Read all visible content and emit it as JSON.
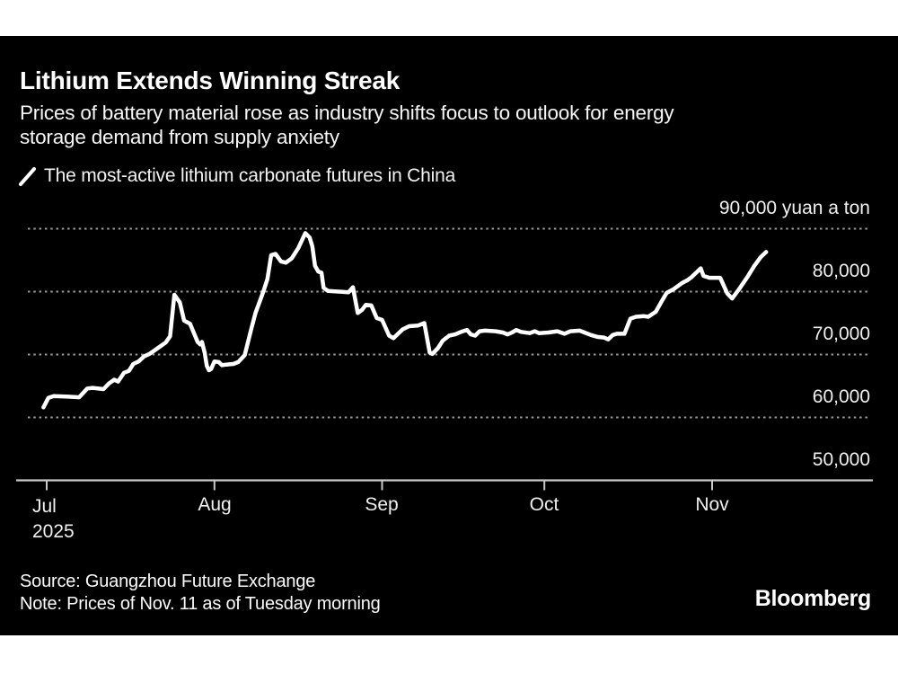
{
  "header": {
    "title": "Lithium Extends Winning Streak",
    "subtitle_line1": "Prices of battery material rose as industry shifts focus to outlook for energy",
    "subtitle_line2": "storage demand from supply anxiety",
    "legend_label": "The most-active lithium carbonate futures in China"
  },
  "footer": {
    "source": "Source: Guangzhou Future Exchange",
    "note": "Note: Prices of Nov. 11 as of Tuesday morning",
    "brand": "Bloomberg"
  },
  "colors": {
    "page_background": "#ffffff",
    "card_background": "#000000",
    "line": "#ffffff",
    "grid": "#9b9b9b",
    "axis": "#c8c8c8",
    "text": "#ffffff"
  },
  "chart_data": {
    "type": "line",
    "title": "Lithium Extends Winning Streak",
    "series_name": "The most-active lithium carbonate futures in China",
    "unit": "yuan a ton",
    "ylim": [
      50000,
      92000
    ],
    "y_ticks": [
      90000,
      80000,
      70000,
      60000,
      50000
    ],
    "y_tick_labels": [
      "90,000 yuan a ton",
      "80,000",
      "70,000",
      "60,000",
      "50,000"
    ],
    "x_tick_labels": [
      "Jul",
      "Aug",
      "Sep",
      "Oct",
      "Nov"
    ],
    "x_year_label": "2025",
    "x_unit": "days since Jul 1, 2025",
    "x_tick_days": [
      0,
      31,
      62,
      92,
      123
    ],
    "grid": true,
    "legend_position": "top-left",
    "points": [
      [
        -0.6,
        61600
      ],
      [
        0.3,
        63100
      ],
      [
        1.3,
        63400
      ],
      [
        4,
        63300
      ],
      [
        6,
        63200
      ],
      [
        7.5,
        64600
      ],
      [
        8.5,
        64700
      ],
      [
        10.5,
        64500
      ],
      [
        11.5,
        65400
      ],
      [
        12.5,
        66000
      ],
      [
        13.2,
        65700
      ],
      [
        14.3,
        67100
      ],
      [
        15.2,
        67400
      ],
      [
        16,
        68500
      ],
      [
        17,
        68900
      ],
      [
        18,
        69700
      ],
      [
        19,
        70100
      ],
      [
        20,
        70700
      ],
      [
        21,
        71300
      ],
      [
        22,
        71900
      ],
      [
        22.8,
        72900
      ],
      [
        23.6,
        79500
      ],
      [
        24.6,
        78300
      ],
      [
        25.4,
        75400
      ],
      [
        26.5,
        74900
      ],
      [
        27.9,
        72000
      ],
      [
        28.4,
        71600
      ],
      [
        28.7,
        72000
      ],
      [
        29.2,
        70300
      ],
      [
        29.6,
        68200
      ],
      [
        30,
        67500
      ],
      [
        30.4,
        67700
      ],
      [
        31,
        68900
      ],
      [
        31.8,
        68800
      ],
      [
        32.4,
        68300
      ],
      [
        33.2,
        68400
      ],
      [
        34.5,
        68500
      ],
      [
        35.4,
        68800
      ],
      [
        36.6,
        69900
      ],
      [
        37.8,
        74000
      ],
      [
        38.6,
        76600
      ],
      [
        40,
        79900
      ],
      [
        40.8,
        82000
      ],
      [
        41.5,
        85800
      ],
      [
        42.3,
        86000
      ],
      [
        43.3,
        84800
      ],
      [
        44.2,
        84600
      ],
      [
        45.3,
        85300
      ],
      [
        46.5,
        86900
      ],
      [
        47.8,
        89300
      ],
      [
        48.6,
        88600
      ],
      [
        49.1,
        87200
      ],
      [
        49.6,
        84100
      ],
      [
        50.2,
        83200
      ],
      [
        50.8,
        83000
      ],
      [
        51.2,
        80600
      ],
      [
        52,
        80100
      ],
      [
        54,
        80000
      ],
      [
        55.8,
        79900
      ],
      [
        56.6,
        80700
      ],
      [
        57.5,
        76600
      ],
      [
        58.3,
        77100
      ],
      [
        59,
        77900
      ],
      [
        60,
        77800
      ],
      [
        61,
        75800
      ],
      [
        62,
        75500
      ],
      [
        63.3,
        73000
      ],
      [
        64.1,
        72600
      ],
      [
        65.8,
        74000
      ],
      [
        67,
        74500
      ],
      [
        68.6,
        74600
      ],
      [
        69.8,
        75000
      ],
      [
        70.8,
        70300
      ],
      [
        71.3,
        70100
      ],
      [
        72.3,
        71000
      ],
      [
        73.2,
        72200
      ],
      [
        74.4,
        73000
      ],
      [
        75.5,
        73200
      ],
      [
        76.9,
        73700
      ],
      [
        77.7,
        73900
      ],
      [
        78.4,
        73200
      ],
      [
        79.2,
        73000
      ],
      [
        80,
        73700
      ],
      [
        81,
        73800
      ],
      [
        83,
        73700
      ],
      [
        84.3,
        73500
      ],
      [
        85.2,
        73200
      ],
      [
        86,
        73500
      ],
      [
        86.8,
        73900
      ],
      [
        87.7,
        73600
      ],
      [
        89.3,
        73400
      ],
      [
        90.2,
        73700
      ],
      [
        91,
        73400
      ],
      [
        92.7,
        73500
      ],
      [
        94.4,
        73700
      ],
      [
        95.7,
        73300
      ],
      [
        96.8,
        73700
      ],
      [
        98.5,
        73800
      ],
      [
        100.6,
        73100
      ],
      [
        101.8,
        72800
      ],
      [
        103,
        72700
      ],
      [
        103.8,
        72400
      ],
      [
        104.6,
        73100
      ],
      [
        105.4,
        73300
      ],
      [
        106.8,
        73300
      ],
      [
        107.9,
        75700
      ],
      [
        108.9,
        76000
      ],
      [
        110.4,
        76100
      ],
      [
        111.2,
        76000
      ],
      [
        112.6,
        76800
      ],
      [
        113.7,
        78500
      ],
      [
        114.6,
        79800
      ],
      [
        115.9,
        80400
      ],
      [
        117.5,
        81400
      ],
      [
        118.4,
        81800
      ],
      [
        119.2,
        82300
      ],
      [
        120.9,
        83700
      ],
      [
        121.4,
        82500
      ],
      [
        122.5,
        82200
      ],
      [
        124.5,
        82200
      ],
      [
        125.8,
        79700
      ],
      [
        126.7,
        78900
      ],
      [
        128,
        80400
      ],
      [
        129.5,
        82300
      ],
      [
        130.8,
        84100
      ],
      [
        132,
        85500
      ],
      [
        133,
        86300
      ]
    ]
  }
}
